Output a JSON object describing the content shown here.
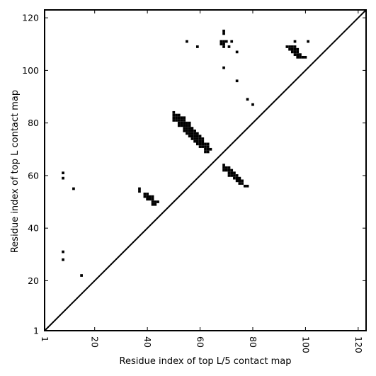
{
  "chart_data": {
    "type": "scatter",
    "title": "",
    "xlabel": "Residue index of top L/5 contact map",
    "ylabel": "Residue index of top L contact map",
    "xlim": [
      1,
      123
    ],
    "ylim": [
      1,
      123
    ],
    "xticks": [
      1,
      20,
      40,
      60,
      80,
      100,
      120
    ],
    "yticks": [
      1,
      20,
      40,
      60,
      80,
      100,
      120
    ],
    "diagonal_line": true,
    "grid": false,
    "marker": "square",
    "marker_color": "#000000",
    "line_color": "#000000",
    "lower_triangle_L5": [
      [
        8,
        61
      ],
      [
        8,
        59
      ],
      [
        8,
        31
      ],
      [
        8,
        28
      ],
      [
        12,
        55
      ],
      [
        15,
        22
      ],
      [
        37,
        55
      ],
      [
        37,
        54
      ],
      [
        39,
        53
      ],
      [
        40,
        53
      ],
      [
        39,
        52
      ],
      [
        40,
        52
      ],
      [
        41,
        52
      ],
      [
        42,
        52
      ],
      [
        40,
        51
      ],
      [
        41,
        51
      ],
      [
        42,
        51
      ],
      [
        42,
        50
      ],
      [
        43,
        50
      ],
      [
        44,
        50
      ],
      [
        42,
        49
      ],
      [
        43,
        49
      ],
      [
        69,
        64
      ],
      [
        69,
        63
      ],
      [
        70,
        63
      ],
      [
        71,
        63
      ],
      [
        69,
        62
      ],
      [
        70,
        62
      ],
      [
        71,
        62
      ],
      [
        72,
        62
      ],
      [
        71,
        61
      ],
      [
        72,
        61
      ],
      [
        73,
        61
      ],
      [
        71,
        60
      ],
      [
        72,
        60
      ],
      [
        73,
        60
      ],
      [
        74,
        60
      ],
      [
        73,
        59
      ],
      [
        74,
        59
      ],
      [
        75,
        59
      ],
      [
        74,
        58
      ],
      [
        75,
        58
      ],
      [
        76,
        58
      ],
      [
        75,
        57
      ],
      [
        76,
        57
      ],
      [
        77,
        56
      ],
      [
        78,
        56
      ]
    ],
    "upper_triangle_L": [
      [
        55,
        111
      ],
      [
        59,
        109
      ],
      [
        69,
        115
      ],
      [
        69,
        114
      ],
      [
        68,
        111
      ],
      [
        69,
        111
      ],
      [
        70,
        111
      ],
      [
        72,
        111
      ],
      [
        68,
        110
      ],
      [
        69,
        110
      ],
      [
        71,
        109
      ],
      [
        69,
        109
      ],
      [
        69,
        101
      ],
      [
        74,
        107
      ],
      [
        74,
        96
      ],
      [
        78,
        89
      ],
      [
        80,
        87
      ],
      [
        96,
        111
      ],
      [
        101,
        111
      ],
      [
        93,
        109
      ],
      [
        94,
        109
      ],
      [
        95,
        109
      ],
      [
        96,
        109
      ],
      [
        94,
        108
      ],
      [
        95,
        108
      ],
      [
        96,
        108
      ],
      [
        97,
        108
      ],
      [
        95,
        107
      ],
      [
        96,
        107
      ],
      [
        97,
        107
      ],
      [
        96,
        106
      ],
      [
        97,
        106
      ],
      [
        98,
        106
      ],
      [
        97,
        105
      ],
      [
        98,
        105
      ],
      [
        99,
        105
      ],
      [
        100,
        105
      ],
      [
        50,
        84
      ],
      [
        50,
        83
      ],
      [
        51,
        83
      ],
      [
        52,
        83
      ],
      [
        50,
        82
      ],
      [
        51,
        82
      ],
      [
        52,
        82
      ],
      [
        53,
        82
      ],
      [
        54,
        82
      ],
      [
        50,
        81
      ],
      [
        51,
        81
      ],
      [
        52,
        81
      ],
      [
        53,
        81
      ],
      [
        54,
        81
      ],
      [
        52,
        80
      ],
      [
        53,
        80
      ],
      [
        54,
        80
      ],
      [
        55,
        80
      ],
      [
        56,
        80
      ],
      [
        52,
        79
      ],
      [
        53,
        79
      ],
      [
        54,
        79
      ],
      [
        55,
        79
      ],
      [
        56,
        79
      ],
      [
        54,
        78
      ],
      [
        55,
        78
      ],
      [
        56,
        78
      ],
      [
        57,
        78
      ],
      [
        54,
        77
      ],
      [
        55,
        77
      ],
      [
        56,
        77
      ],
      [
        57,
        77
      ],
      [
        58,
        77
      ],
      [
        55,
        76
      ],
      [
        56,
        76
      ],
      [
        57,
        76
      ],
      [
        58,
        76
      ],
      [
        59,
        76
      ],
      [
        56,
        75
      ],
      [
        57,
        75
      ],
      [
        58,
        75
      ],
      [
        59,
        75
      ],
      [
        60,
        75
      ],
      [
        57,
        74
      ],
      [
        58,
        74
      ],
      [
        59,
        74
      ],
      [
        60,
        74
      ],
      [
        61,
        74
      ],
      [
        58,
        73
      ],
      [
        59,
        73
      ],
      [
        60,
        73
      ],
      [
        61,
        73
      ],
      [
        59,
        72
      ],
      [
        60,
        72
      ],
      [
        61,
        72
      ],
      [
        62,
        72
      ],
      [
        63,
        72
      ],
      [
        60,
        71
      ],
      [
        61,
        71
      ],
      [
        62,
        71
      ],
      [
        63,
        71
      ],
      [
        62,
        70
      ],
      [
        63,
        70
      ],
      [
        64,
        70
      ],
      [
        62,
        69
      ],
      [
        63,
        69
      ]
    ]
  }
}
